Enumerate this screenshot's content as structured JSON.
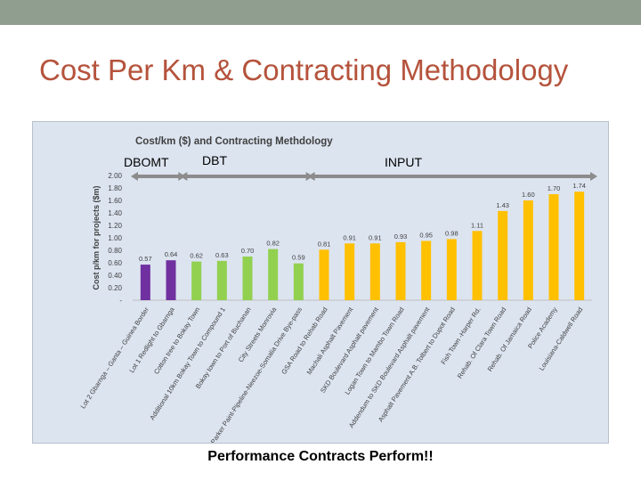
{
  "slide": {
    "title": "Cost Per Km & Contracting Methodology",
    "caption": "Performance Contracts Perform!!"
  },
  "colors": {
    "topbar": "#8f9e8e",
    "title": "#b5533c",
    "panel": "#dce4f0",
    "dbomt": "#7030a0",
    "dbt": "#92d050",
    "input": "#ffc000"
  },
  "chart_data": {
    "type": "bar",
    "title": "Cost/km ($) and Contracting Methdology",
    "ylabel": "Cost p/km for projects ($m)",
    "ylim": [
      0,
      2.0
    ],
    "yticks": [
      "-",
      "0.20",
      "0.40",
      "0.60",
      "0.80",
      "1.00",
      "1.20",
      "1.40",
      "1.60",
      "1.80",
      "2.00"
    ],
    "grid": false,
    "groups": [
      {
        "label": "DBOMT",
        "color": "#7030a0"
      },
      {
        "label": "DBT",
        "color": "#92d050"
      },
      {
        "label": "INPUT",
        "color": "#ffc000"
      }
    ],
    "categories": [
      "Lot 2 Gbarnga – Ganta – Guinea Border",
      "Lot 1 Redlight to Gbarnga",
      "Cotton tree to Bokay Town",
      "Additional 10km Bokay Town to Compound 1",
      "Bokay town to Port of Buchanan",
      "City Streets Monrovia",
      "Parker Paint-Pipeline-Neezoe-Somalia Drive Bye-pass",
      "GSA Road to Rehab Road",
      "Machali Asphalt Pavement",
      "SKD Boulevard Asphalt pavement",
      "Logan Town to Mambo Town Road",
      "Addendum to SKD Boulevard Asphalt pavement",
      "Asphalt Pavement A.B. Tolbert to Dupot Road",
      "Fish Town -Harper Rd.",
      "Rehab. Of Clara Town Road",
      "Rehab. Of Jamaica Road",
      "Police Academy",
      "Louisiana-Caldwell Road"
    ],
    "values": [
      0.57,
      0.64,
      0.62,
      0.63,
      0.7,
      0.82,
      0.59,
      0.81,
      0.91,
      0.91,
      0.93,
      0.95,
      0.98,
      1.11,
      1.43,
      1.6,
      1.7,
      1.74
    ],
    "data_labels": [
      "0.57",
      "0.64",
      "0.62",
      "0.63",
      "0.70",
      "0.82",
      "0.59",
      "0.81",
      "0.91",
      "0.91",
      "0.93",
      "0.95",
      "0.98",
      "1.11",
      "1.43",
      "1.60",
      "1.70",
      "1.74"
    ],
    "group_index": [
      0,
      0,
      1,
      1,
      1,
      1,
      1,
      2,
      2,
      2,
      2,
      2,
      2,
      2,
      2,
      2,
      2,
      2
    ]
  }
}
